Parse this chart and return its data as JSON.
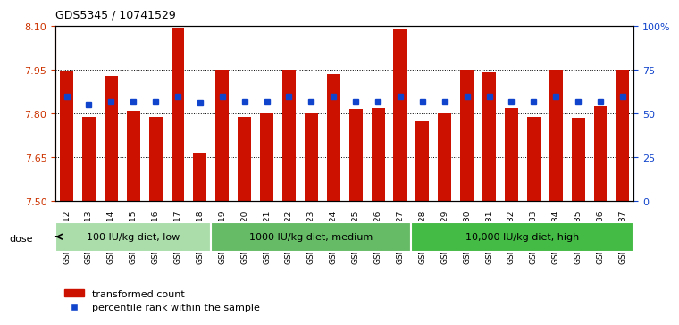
{
  "title": "GDS5345 / 10741529",
  "samples": [
    "GSM1502412",
    "GSM1502413",
    "GSM1502414",
    "GSM1502415",
    "GSM1502416",
    "GSM1502417",
    "GSM1502418",
    "GSM1502419",
    "GSM1502420",
    "GSM1502421",
    "GSM1502422",
    "GSM1502423",
    "GSM1502424",
    "GSM1502425",
    "GSM1502426",
    "GSM1502427",
    "GSM1502428",
    "GSM1502429",
    "GSM1502430",
    "GSM1502431",
    "GSM1502432",
    "GSM1502433",
    "GSM1502434",
    "GSM1502435",
    "GSM1502436",
    "GSM1502437"
  ],
  "red_values": [
    7.945,
    7.79,
    7.93,
    7.81,
    7.79,
    8.095,
    7.665,
    7.95,
    7.79,
    7.8,
    7.95,
    7.8,
    7.935,
    7.815,
    7.82,
    8.09,
    7.775,
    7.8,
    7.95,
    7.94,
    7.82,
    7.79,
    7.95,
    7.785,
    7.825,
    7.95
  ],
  "blue_values": [
    60,
    55,
    57,
    57,
    57,
    60,
    56,
    60,
    57,
    57,
    60,
    57,
    60,
    57,
    57,
    60,
    57,
    57,
    60,
    60,
    57,
    57,
    60,
    57,
    57,
    60
  ],
  "groups": [
    {
      "label": "100 IU/kg diet, low",
      "start": 0,
      "end": 7
    },
    {
      "label": "1000 IU/kg diet, medium",
      "start": 7,
      "end": 16
    },
    {
      "label": "10,000 IU/kg diet, high",
      "start": 16,
      "end": 26
    }
  ],
  "group_colors": [
    "#AADDAA",
    "#66BB66",
    "#44BB44"
  ],
  "ylim_left": [
    7.5,
    8.1
  ],
  "ylim_right": [
    0,
    100
  ],
  "yticks_left": [
    7.5,
    7.65,
    7.8,
    7.95,
    8.1
  ],
  "yticks_right": [
    0,
    25,
    50,
    75,
    100
  ],
  "ytick_labels_right": [
    "0",
    "25",
    "50",
    "75",
    "100%"
  ],
  "grid_values": [
    7.65,
    7.8,
    7.95
  ],
  "bar_color": "#CC1100",
  "dot_color": "#1144CC",
  "bar_width": 0.6,
  "legend_red": "transformed count",
  "legend_blue": "percentile rank within the sample",
  "dose_label": "dose",
  "tick_color_left": "#CC3300",
  "tick_color_right": "#1144CC"
}
